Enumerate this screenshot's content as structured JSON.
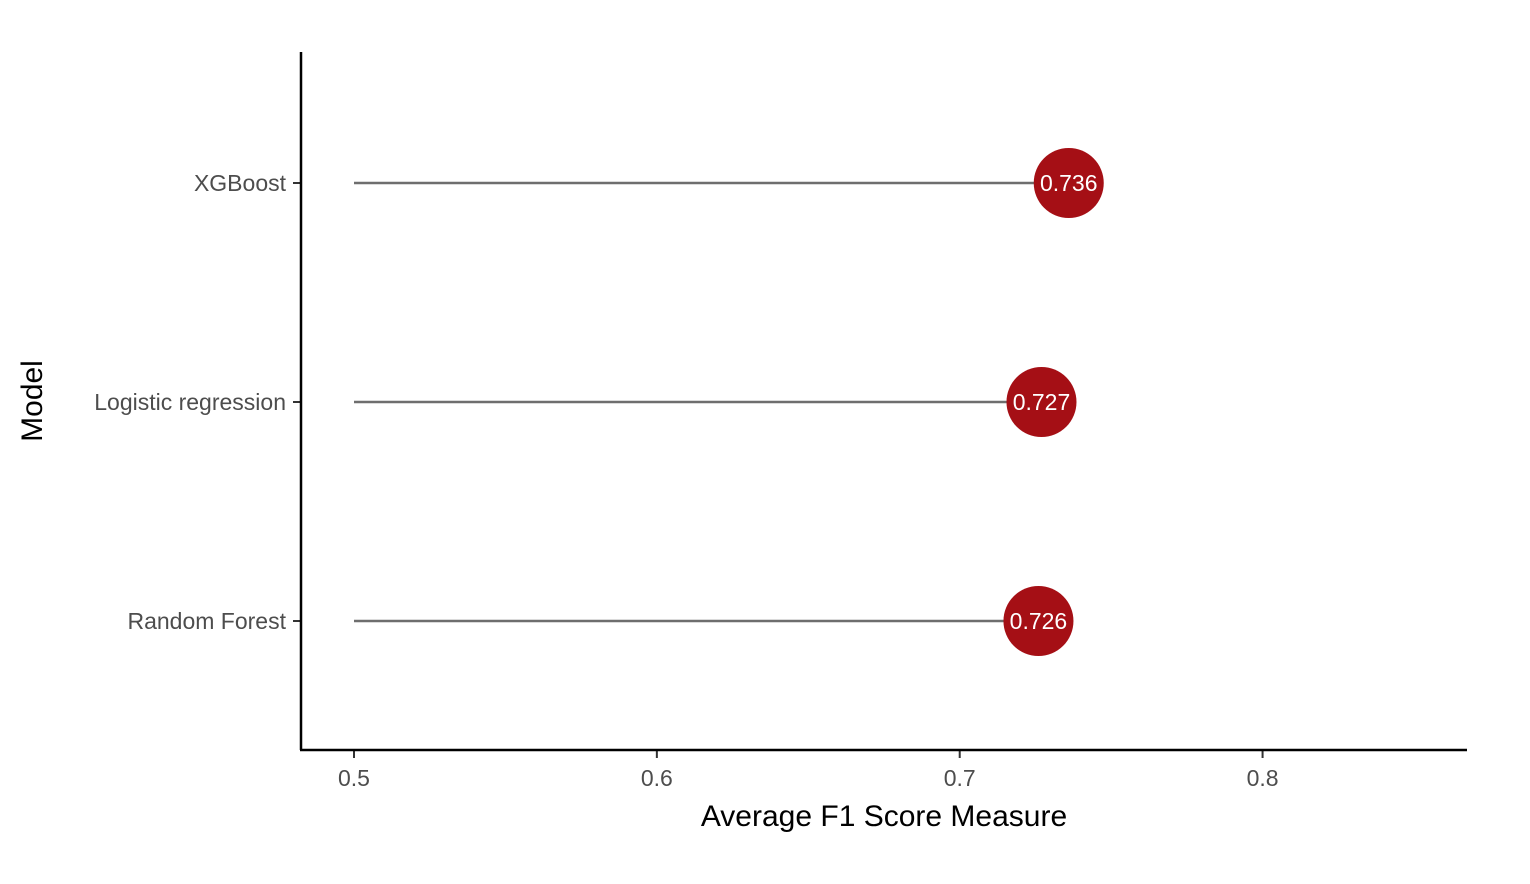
{
  "chart_data": {
    "type": "lollipop",
    "title": "",
    "xlabel": "Average F1 Score Measure",
    "ylabel": "Model",
    "categories": [
      "XGBoost",
      "Logistic regression",
      "Random Forest"
    ],
    "values": [
      0.736,
      0.727,
      0.726
    ],
    "value_labels": [
      "0.736",
      "0.727",
      "0.726"
    ],
    "baseline": 0.5,
    "xticks": [
      0.5,
      0.6,
      0.7,
      0.8
    ],
    "xtick_labels": [
      "0.5",
      "0.6",
      "0.7",
      "0.8"
    ],
    "xlim": [
      0.4825,
      0.8675
    ],
    "grid": false,
    "colors": {
      "point": "#a50f15",
      "stem": "#6e6e6e",
      "axis": "#000000",
      "label": "#ffffff"
    }
  }
}
